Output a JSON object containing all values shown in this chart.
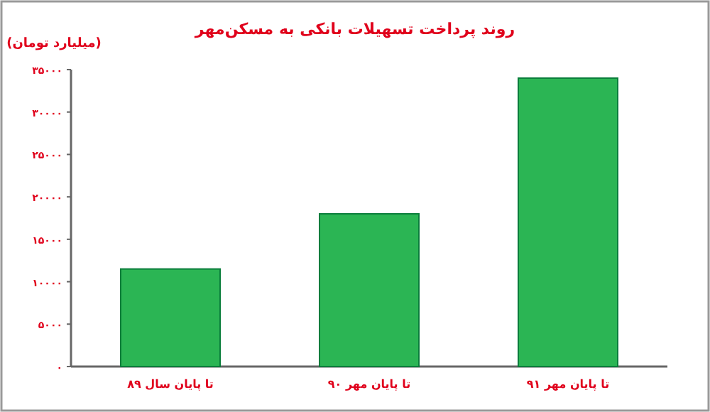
{
  "chart_data": {
    "type": "bar",
    "title": "روند پرداخت تسهیلات بانکی به مسکن‌مهر",
    "ylabel": "(میلیارد تومان)",
    "categories": [
      "تا پایان سال ۸۹",
      "تا پایان مهر ۹۰",
      "تا پایان مهر ۹۱"
    ],
    "values": [
      11500,
      18000,
      34000
    ],
    "color": "#2bb554",
    "ylim": [
      0,
      35000
    ],
    "yticks": [
      {
        "value": 0,
        "label": "۰"
      },
      {
        "value": 5000,
        "label": "۵۰۰۰"
      },
      {
        "value": 10000,
        "label": "۱۰۰۰۰"
      },
      {
        "value": 15000,
        "label": "۱۵۰۰۰"
      },
      {
        "value": 20000,
        "label": "۲۰۰۰۰"
      },
      {
        "value": 25000,
        "label": "۲۵۰۰۰"
      },
      {
        "value": 30000,
        "label": "۳۰۰۰۰"
      },
      {
        "value": 35000,
        "label": "۳۵۰۰۰"
      }
    ],
    "grid": false
  }
}
